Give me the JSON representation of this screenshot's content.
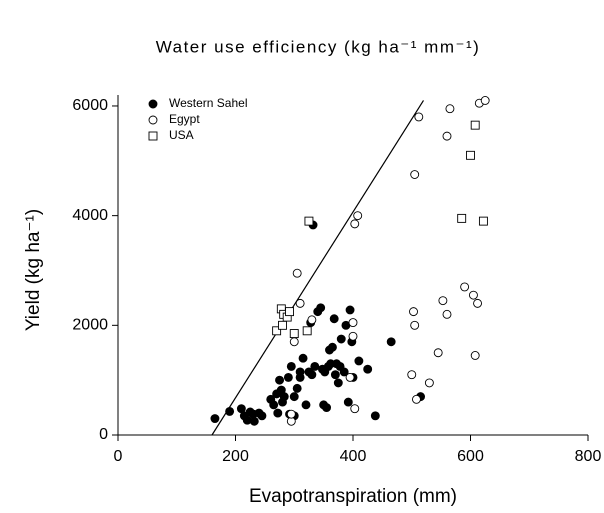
{
  "chart_data": {
    "type": "scatter",
    "title": "Water use efficiency (kg ha⁻¹ mm⁻¹)",
    "x_label": "Evapotranspiration (mm)",
    "y_label": "Yield (kg ha⁻¹)",
    "xlim": [
      0,
      800
    ],
    "xticks": [
      0,
      200,
      400,
      600,
      800
    ],
    "ylim": [
      0,
      6200
    ],
    "yticks": [
      0,
      2000,
      4000,
      6000
    ],
    "legend": "upper left",
    "series": [
      {
        "name": "Western Sahel",
        "color": "#000000",
        "marker": "filled-circle",
        "x": [
          165,
          190,
          210,
          215,
          220,
          225,
          230,
          232,
          240,
          245,
          260,
          265,
          270,
          272,
          275,
          278,
          280,
          283,
          290,
          292,
          295,
          300,
          305,
          310,
          315,
          320,
          325,
          328,
          330,
          332,
          335,
          340,
          345,
          348,
          350,
          352,
          355,
          358,
          362,
          365,
          368,
          370,
          372,
          375,
          378,
          380,
          385,
          388,
          392,
          395,
          398,
          400,
          410,
          425,
          438,
          465,
          515,
          310,
          360,
          300
        ],
        "values": [
          300,
          430,
          480,
          350,
          270,
          420,
          380,
          250,
          400,
          350,
          650,
          550,
          750,
          400,
          1000,
          820,
          600,
          700,
          1050,
          380,
          1250,
          700,
          850,
          1050,
          1400,
          550,
          1150,
          2050,
          1100,
          3830,
          1250,
          2250,
          2320,
          1200,
          550,
          1150,
          500,
          1250,
          1300,
          1600,
          2120,
          1100,
          1300,
          950,
          1250,
          1750,
          1150,
          2000,
          600,
          2280,
          1700,
          1050,
          1350,
          1200,
          350,
          1700,
          700,
          1150,
          1550,
          350
        ]
      },
      {
        "name": "Egypt",
        "color": "#000000",
        "marker": "open-circle",
        "x": [
          295,
          300,
          305,
          310,
          330,
          395,
          400,
          403,
          403,
          408,
          400,
          500,
          503,
          505,
          505,
          508,
          512,
          530,
          545,
          553,
          560,
          560,
          565,
          590,
          605,
          608,
          612,
          615,
          625,
          295
        ],
        "values": [
          250,
          1700,
          2950,
          2400,
          2100,
          1050,
          2050,
          480,
          3850,
          4000,
          1800,
          1100,
          2250,
          2000,
          4750,
          650,
          5800,
          950,
          1500,
          2450,
          2200,
          5450,
          5950,
          2700,
          2550,
          1450,
          2400,
          6050,
          6100,
          380
        ]
      },
      {
        "name": "USA",
        "color": "#000000",
        "marker": "open-square",
        "x": [
          270,
          278,
          280,
          282,
          288,
          292,
          300,
          322,
          325,
          585,
          600,
          608,
          622
        ],
        "values": [
          1900,
          2300,
          2000,
          2200,
          2150,
          2250,
          1850,
          1900,
          3900,
          3950,
          5100,
          5650,
          3900
        ]
      }
    ],
    "reference_line": {
      "x": [
        160,
        520
      ],
      "y": [
        0,
        6100
      ],
      "color": "#000000"
    }
  }
}
